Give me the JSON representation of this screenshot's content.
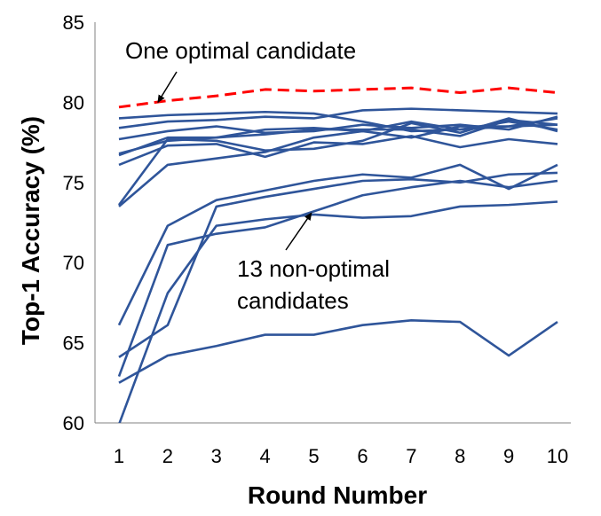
{
  "chart_data": {
    "type": "line",
    "xlabel": "Round Number",
    "ylabel": "Top-1 Accuracy (%)",
    "x": [
      1,
      2,
      3,
      4,
      5,
      6,
      7,
      8,
      9,
      10
    ],
    "xlim": [
      1,
      10
    ],
    "ylim": [
      60,
      85
    ],
    "yticks": [
      60,
      65,
      70,
      75,
      80,
      85
    ],
    "grid": false,
    "optimal_color": "#ff0000",
    "nonoptimal_color": "#2f559a",
    "series": [
      {
        "group": "optimal",
        "values": [
          79.7,
          80.1,
          80.4,
          80.8,
          80.7,
          80.8,
          80.9,
          80.6,
          80.9,
          80.6
        ]
      },
      {
        "group": "non-optimal",
        "values": [
          79.0,
          79.2,
          79.3,
          79.4,
          79.3,
          78.8,
          78.2,
          78.3,
          78.8,
          78.3
        ]
      },
      {
        "group": "non-optimal",
        "values": [
          78.4,
          78.8,
          78.9,
          79.1,
          79.0,
          79.5,
          79.6,
          79.5,
          79.4,
          79.3
        ]
      },
      {
        "group": "non-optimal",
        "values": [
          77.7,
          78.2,
          78.5,
          78.1,
          78.2,
          78.6,
          78.4,
          78.6,
          78.3,
          79.1
        ]
      },
      {
        "group": "non-optimal",
        "values": [
          76.8,
          77.6,
          77.8,
          78.0,
          78.3,
          78.3,
          78.3,
          77.9,
          78.9,
          78.6
        ]
      },
      {
        "group": "non-optimal",
        "values": [
          76.7,
          77.8,
          77.8,
          78.3,
          78.4,
          78.2,
          78.8,
          78.3,
          78.5,
          79.0
        ]
      },
      {
        "group": "non-optimal",
        "values": [
          76.1,
          77.3,
          77.4,
          76.6,
          77.5,
          77.4,
          77.9,
          77.2,
          77.7,
          77.4
        ]
      },
      {
        "group": "non-optimal",
        "values": [
          73.6,
          77.7,
          77.6,
          77.0,
          77.1,
          77.6,
          78.7,
          78.1,
          79.0,
          78.2
        ]
      },
      {
        "group": "non-optimal",
        "values": [
          73.5,
          76.1,
          76.5,
          76.9,
          77.8,
          78.2,
          77.8,
          78.5,
          78.5,
          78.6
        ]
      },
      {
        "group": "non-optimal",
        "values": [
          66.1,
          72.3,
          73.9,
          74.5,
          75.1,
          75.5,
          75.3,
          76.1,
          74.6,
          76.1
        ]
      },
      {
        "group": "non-optimal",
        "values": [
          64.1,
          66.1,
          73.5,
          74.1,
          74.6,
          75.1,
          75.2,
          75.0,
          75.5,
          75.6
        ]
      },
      {
        "group": "non-optimal",
        "values": [
          62.9,
          71.1,
          71.8,
          72.2,
          73.2,
          74.2,
          74.7,
          75.1,
          74.7,
          75.1
        ]
      },
      {
        "group": "non-optimal",
        "values": [
          62.5,
          64.2,
          64.8,
          65.5,
          65.5,
          66.1,
          66.4,
          66.3,
          64.2,
          66.3
        ]
      },
      {
        "group": "non-optimal",
        "values": [
          59.9,
          68.1,
          72.3,
          72.7,
          73.0,
          72.8,
          72.9,
          73.5,
          73.6,
          73.8
        ]
      }
    ],
    "annotations": [
      {
        "text": "One optimal candidate",
        "points_to": {
          "x": 1.8,
          "y": 80.0
        }
      },
      {
        "text": [
          "13 non-optimal",
          "candidates"
        ],
        "points_to": {
          "x": 4.95,
          "y": 73.1
        }
      }
    ]
  }
}
